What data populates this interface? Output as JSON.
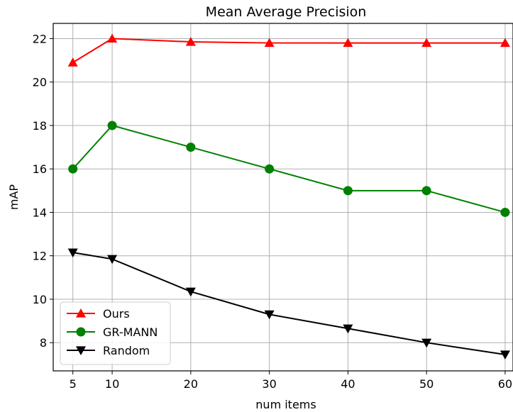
{
  "chart_data": {
    "type": "line",
    "title": "Mean Average Precision",
    "xlabel": "num items",
    "ylabel": "mAP",
    "x": [
      5,
      10,
      20,
      30,
      40,
      50,
      60
    ],
    "xticks": [
      "5",
      "10",
      "20",
      "30",
      "40",
      "50",
      "60"
    ],
    "yticks": [
      "8",
      "10",
      "12",
      "14",
      "16",
      "18",
      "20",
      "22"
    ],
    "xlim": [
      2.5,
      61
    ],
    "ylim": [
      6.7,
      22.7
    ],
    "grid": true,
    "legend_position": "lower-left",
    "series": [
      {
        "name": "Ours",
        "values": [
          20.9,
          22.0,
          21.85,
          21.8,
          21.8,
          21.8,
          21.8
        ],
        "color": "#ff0000",
        "marker": "triangle-up"
      },
      {
        "name": "GR-MANN",
        "values": [
          16.0,
          18.0,
          17.0,
          16.0,
          15.0,
          15.0,
          14.0
        ],
        "color": "#008000",
        "marker": "circle"
      },
      {
        "name": "Random",
        "values": [
          12.15,
          11.85,
          10.35,
          9.3,
          8.65,
          8.0,
          7.45
        ],
        "color": "#000000",
        "marker": "triangle-down"
      }
    ]
  }
}
